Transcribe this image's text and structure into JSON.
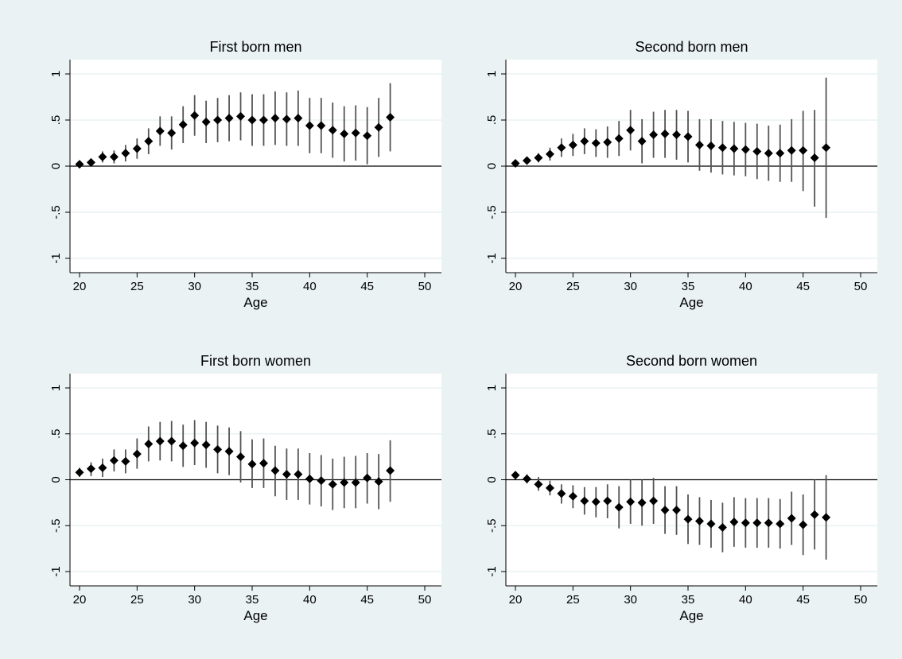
{
  "colors": {
    "outer_background": "#eaf2f3",
    "plot_background": "#ffffff",
    "gridline": "#eaf2f3",
    "marker": "#000000",
    "ci_line": "#555555",
    "zero_line": "#000000"
  },
  "chart_data": [
    {
      "type": "scatter",
      "title": "First born men",
      "xlabel": "Age",
      "ylabel": "",
      "xlim": [
        20,
        50
      ],
      "ylim": [
        -1,
        1
      ],
      "xticks": [
        20,
        25,
        30,
        35,
        40,
        45,
        50
      ],
      "yticks": [
        -1,
        -0.5,
        0,
        0.5,
        1
      ],
      "yticklabels": [
        "-1",
        "-.5",
        "0",
        ".5",
        "1"
      ],
      "grid": true,
      "reference_line": 0,
      "marker": "diamond",
      "x": [
        20,
        21,
        22,
        23,
        24,
        25,
        26,
        27,
        28,
        29,
        30,
        31,
        32,
        33,
        34,
        35,
        36,
        37,
        38,
        39,
        40,
        41,
        42,
        43,
        44,
        45,
        46,
        47
      ],
      "y": [
        0.02,
        0.04,
        0.1,
        0.1,
        0.14,
        0.19,
        0.27,
        0.38,
        0.36,
        0.45,
        0.55,
        0.48,
        0.5,
        0.52,
        0.54,
        0.5,
        0.5,
        0.52,
        0.51,
        0.52,
        0.44,
        0.44,
        0.39,
        0.35,
        0.36,
        0.33,
        0.42,
        0.53
      ],
      "ci_low": [
        -0.02,
        0.0,
        0.04,
        0.03,
        0.05,
        0.08,
        0.13,
        0.22,
        0.18,
        0.25,
        0.33,
        0.25,
        0.26,
        0.27,
        0.28,
        0.22,
        0.22,
        0.23,
        0.22,
        0.22,
        0.14,
        0.14,
        0.09,
        0.05,
        0.06,
        0.02,
        0.1,
        0.16
      ],
      "ci_high": [
        0.06,
        0.08,
        0.16,
        0.17,
        0.23,
        0.3,
        0.41,
        0.54,
        0.54,
        0.65,
        0.77,
        0.71,
        0.74,
        0.77,
        0.8,
        0.78,
        0.78,
        0.81,
        0.8,
        0.82,
        0.74,
        0.74,
        0.69,
        0.65,
        0.66,
        0.64,
        0.74,
        0.9
      ]
    },
    {
      "type": "scatter",
      "title": "Second born men",
      "xlabel": "Age",
      "ylabel": "",
      "xlim": [
        20,
        50
      ],
      "ylim": [
        -1,
        1
      ],
      "xticks": [
        20,
        25,
        30,
        35,
        40,
        45,
        50
      ],
      "yticks": [
        -1,
        -0.5,
        0,
        0.5,
        1
      ],
      "yticklabels": [
        "-1",
        "-.5",
        "0",
        ".5",
        "1"
      ],
      "grid": true,
      "reference_line": 0,
      "marker": "diamond",
      "x": [
        20,
        21,
        22,
        23,
        24,
        25,
        26,
        27,
        28,
        29,
        30,
        31,
        32,
        33,
        34,
        35,
        36,
        37,
        38,
        39,
        40,
        41,
        42,
        43,
        44,
        45,
        46,
        47
      ],
      "y": [
        0.03,
        0.06,
        0.09,
        0.13,
        0.2,
        0.23,
        0.27,
        0.25,
        0.26,
        0.3,
        0.39,
        0.27,
        0.34,
        0.35,
        0.34,
        0.32,
        0.23,
        0.22,
        0.2,
        0.19,
        0.18,
        0.16,
        0.14,
        0.14,
        0.17,
        0.17,
        0.09,
        0.2
      ],
      "ci_low": [
        0.0,
        0.02,
        0.04,
        0.06,
        0.1,
        0.11,
        0.13,
        0.1,
        0.09,
        0.11,
        0.17,
        0.03,
        0.09,
        0.09,
        0.07,
        0.04,
        -0.05,
        -0.07,
        -0.09,
        -0.1,
        -0.11,
        -0.14,
        -0.16,
        -0.17,
        -0.17,
        -0.27,
        -0.44,
        -0.56
      ],
      "ci_high": [
        0.06,
        0.1,
        0.14,
        0.2,
        0.3,
        0.35,
        0.41,
        0.4,
        0.43,
        0.49,
        0.61,
        0.51,
        0.59,
        0.61,
        0.61,
        0.6,
        0.51,
        0.51,
        0.49,
        0.48,
        0.47,
        0.46,
        0.44,
        0.45,
        0.51,
        0.6,
        0.61,
        0.96
      ]
    },
    {
      "type": "scatter",
      "title": "First born women",
      "xlabel": "Age",
      "ylabel": "",
      "xlim": [
        20,
        50
      ],
      "ylim": [
        -1,
        1
      ],
      "xticks": [
        20,
        25,
        30,
        35,
        40,
        45,
        50
      ],
      "yticks": [
        -1,
        -0.5,
        0,
        0.5,
        1
      ],
      "yticklabels": [
        "-1",
        "-.5",
        "0",
        ".5",
        "1"
      ],
      "grid": true,
      "reference_line": 0,
      "marker": "diamond",
      "x": [
        20,
        21,
        22,
        23,
        24,
        25,
        26,
        27,
        28,
        29,
        30,
        31,
        32,
        33,
        34,
        35,
        36,
        37,
        38,
        39,
        40,
        41,
        42,
        43,
        44,
        45,
        46,
        47
      ],
      "y": [
        0.08,
        0.12,
        0.13,
        0.21,
        0.2,
        0.28,
        0.39,
        0.42,
        0.42,
        0.37,
        0.4,
        0.38,
        0.33,
        0.31,
        0.25,
        0.17,
        0.18,
        0.1,
        0.06,
        0.06,
        0.01,
        -0.01,
        -0.05,
        -0.03,
        -0.03,
        0.02,
        -0.02,
        0.1
      ],
      "ci_low": [
        0.03,
        0.04,
        0.03,
        0.09,
        0.07,
        0.12,
        0.2,
        0.21,
        0.2,
        0.14,
        0.16,
        0.13,
        0.07,
        0.05,
        -0.03,
        -0.09,
        -0.09,
        -0.18,
        -0.22,
        -0.22,
        -0.27,
        -0.29,
        -0.33,
        -0.31,
        -0.31,
        -0.26,
        -0.32,
        -0.24
      ],
      "ci_high": [
        0.13,
        0.19,
        0.23,
        0.33,
        0.33,
        0.45,
        0.58,
        0.63,
        0.64,
        0.6,
        0.65,
        0.63,
        0.59,
        0.57,
        0.53,
        0.44,
        0.45,
        0.37,
        0.34,
        0.34,
        0.29,
        0.27,
        0.23,
        0.25,
        0.26,
        0.29,
        0.28,
        0.43
      ]
    },
    {
      "type": "scatter",
      "title": "Second born women",
      "xlabel": "Age",
      "ylabel": "",
      "xlim": [
        20,
        50
      ],
      "ylim": [
        -1,
        1
      ],
      "xticks": [
        20,
        25,
        30,
        35,
        40,
        45,
        50
      ],
      "yticks": [
        -1,
        -0.5,
        0,
        0.5,
        1
      ],
      "yticklabels": [
        "-1",
        "-.5",
        "0",
        ".5",
        "1"
      ],
      "grid": true,
      "reference_line": 0,
      "marker": "diamond",
      "x": [
        20,
        21,
        22,
        23,
        24,
        25,
        26,
        27,
        28,
        29,
        30,
        31,
        32,
        33,
        34,
        35,
        36,
        37,
        38,
        39,
        40,
        41,
        42,
        43,
        44,
        45,
        46,
        47
      ],
      "y": [
        0.05,
        0.01,
        -0.05,
        -0.09,
        -0.15,
        -0.18,
        -0.23,
        -0.24,
        -0.23,
        -0.3,
        -0.24,
        -0.25,
        -0.23,
        -0.33,
        -0.33,
        -0.43,
        -0.45,
        -0.48,
        -0.52,
        -0.46,
        -0.47,
        -0.47,
        -0.47,
        -0.48,
        -0.42,
        -0.49,
        -0.38,
        -0.41
      ],
      "ci_low": [
        0.02,
        -0.04,
        -0.12,
        -0.17,
        -0.26,
        -0.31,
        -0.38,
        -0.41,
        -0.42,
        -0.53,
        -0.48,
        -0.5,
        -0.48,
        -0.59,
        -0.6,
        -0.7,
        -0.71,
        -0.74,
        -0.79,
        -0.73,
        -0.74,
        -0.74,
        -0.74,
        -0.75,
        -0.71,
        -0.82,
        -0.76,
        -0.87
      ],
      "ci_high": [
        0.08,
        0.06,
        0.03,
        -0.01,
        -0.05,
        -0.06,
        -0.08,
        -0.08,
        -0.05,
        -0.07,
        0.0,
        0.0,
        0.02,
        -0.07,
        -0.07,
        -0.16,
        -0.19,
        -0.22,
        -0.25,
        -0.19,
        -0.2,
        -0.2,
        -0.2,
        -0.21,
        -0.13,
        -0.16,
        0.0,
        0.05
      ]
    }
  ]
}
